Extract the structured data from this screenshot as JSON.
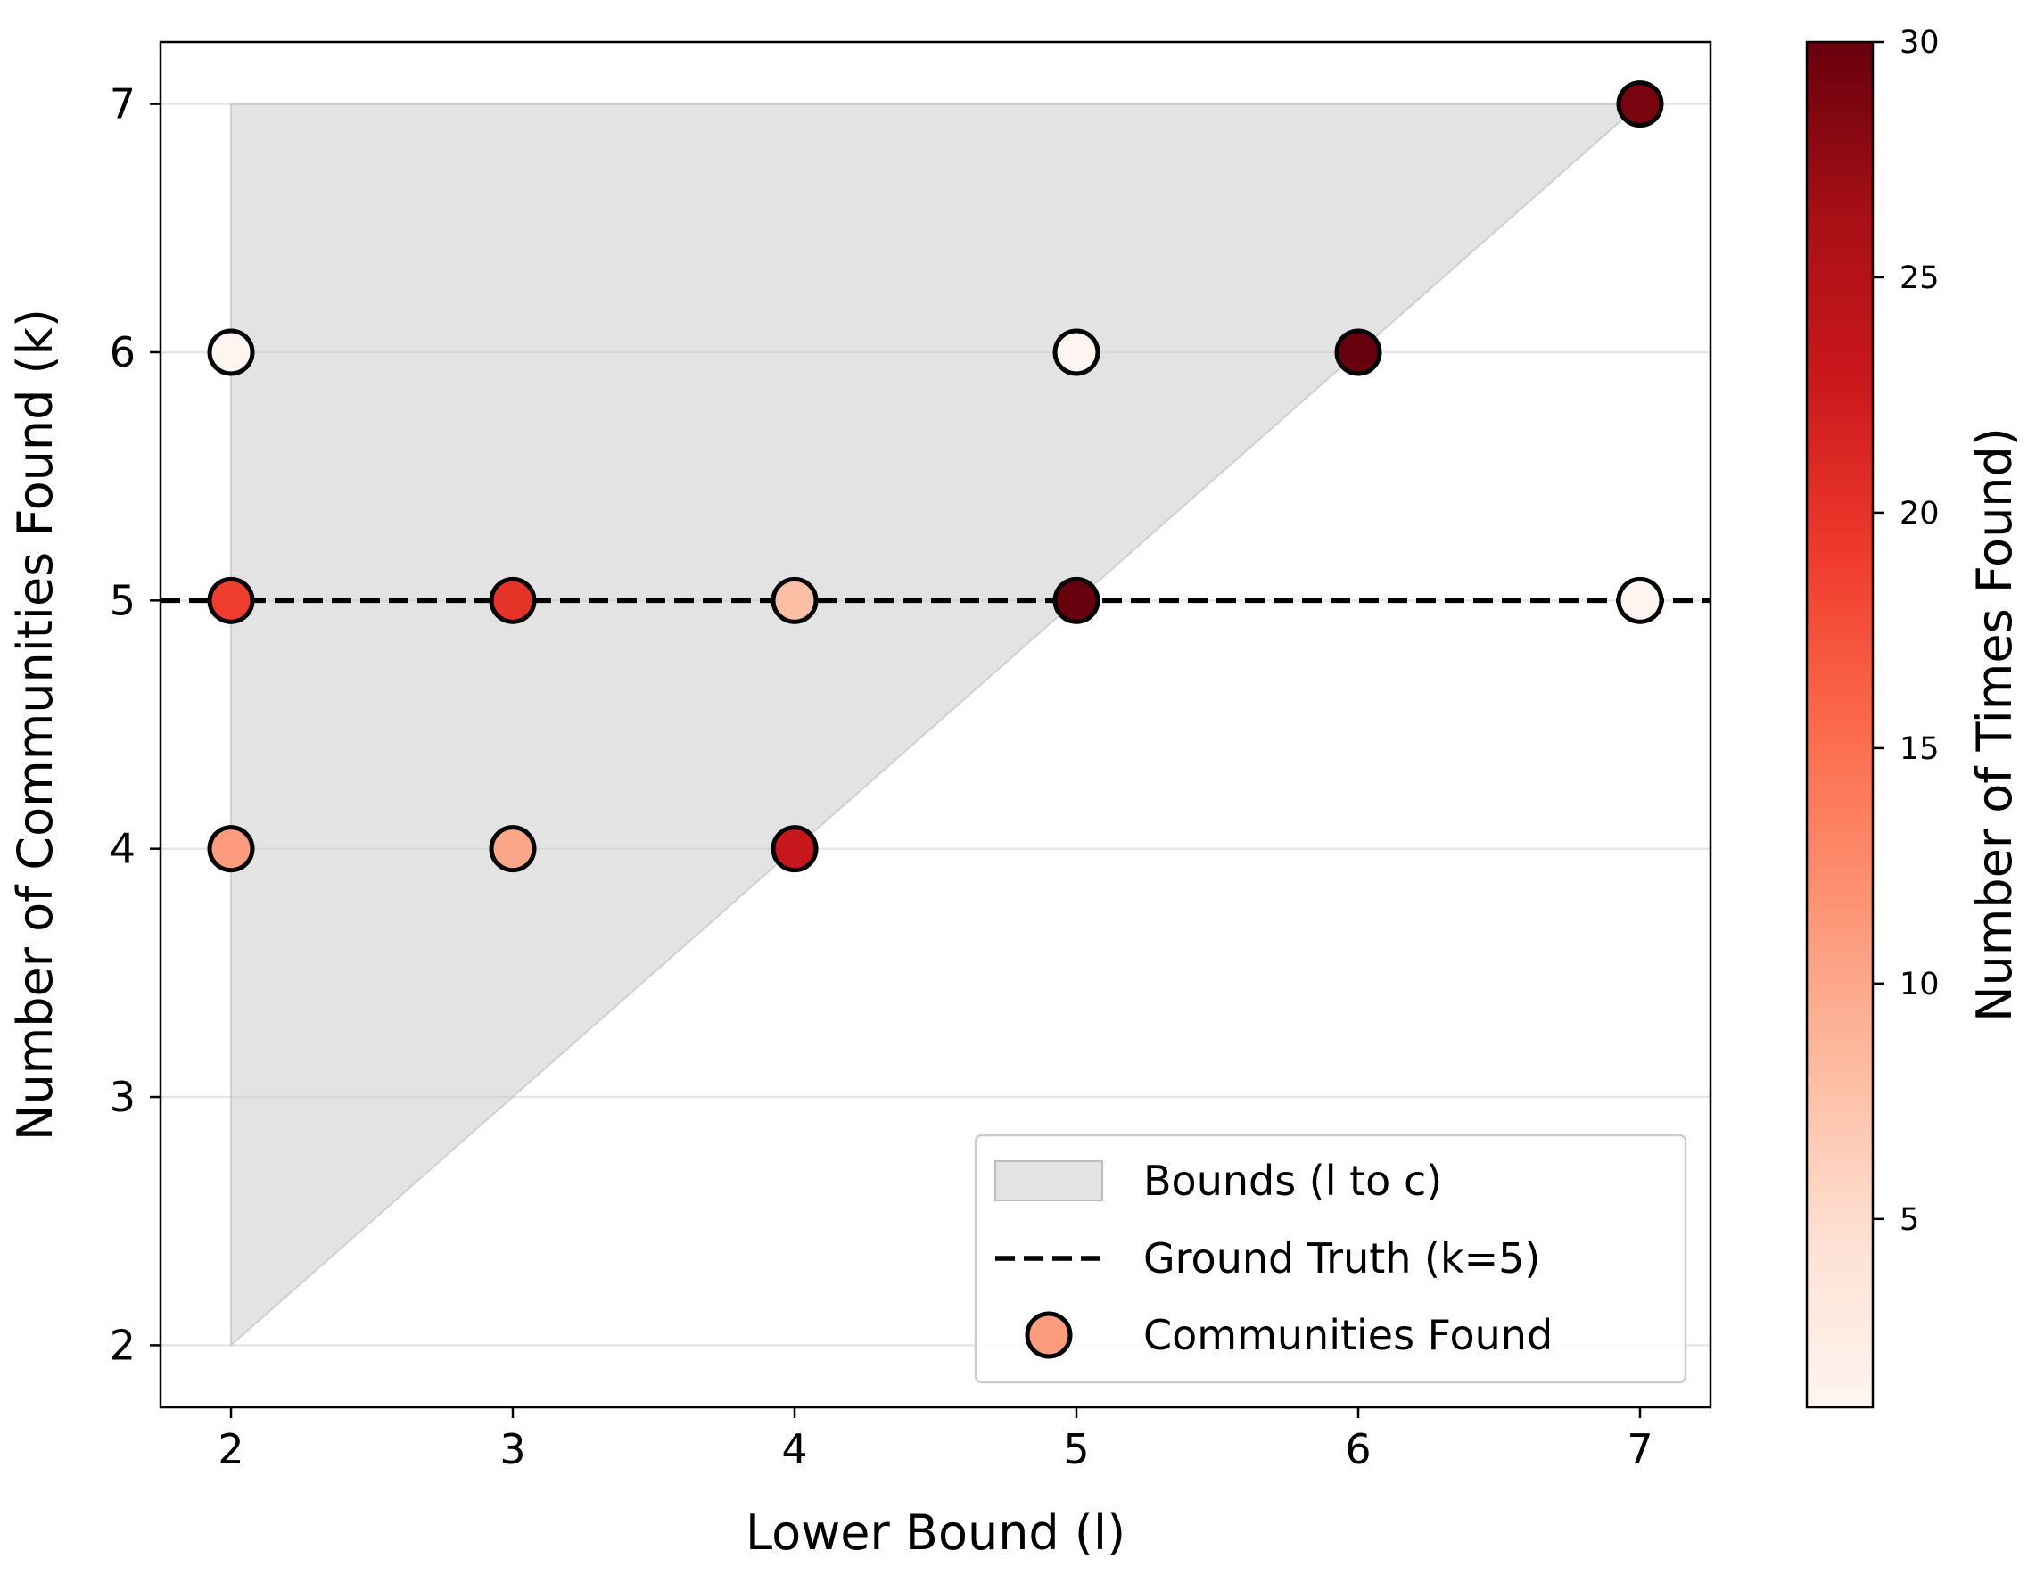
{
  "chart_data": {
    "type": "scatter",
    "title": "",
    "xlabel": "Lower Bound (l)",
    "ylabel": "Number of Communities Found (k)",
    "xlim": [
      1.75,
      7.25
    ],
    "ylim": [
      1.75,
      7.25
    ],
    "xticks": [
      2,
      3,
      4,
      5,
      6,
      7
    ],
    "yticks": [
      2,
      3,
      4,
      5,
      6,
      7
    ],
    "grid": "horizontal",
    "bounds_region": {
      "label": "Bounds (l to c)",
      "lower": [
        [
          2,
          2
        ],
        [
          7,
          7
        ]
      ],
      "upper": [
        [
          2,
          7
        ],
        [
          7,
          7
        ]
      ],
      "color": "#cccccc"
    },
    "reference_line": {
      "label": "Ground Truth (k=5)",
      "y": 5,
      "style": "dashed",
      "color": "#000000"
    },
    "series": [
      {
        "name": "Communities Found",
        "legend_color": "#fc9c7d",
        "points": [
          {
            "x": 2,
            "y": 6,
            "count": 1
          },
          {
            "x": 2,
            "y": 5,
            "count": 19
          },
          {
            "x": 2,
            "y": 4,
            "count": 11
          },
          {
            "x": 3,
            "y": 5,
            "count": 20
          },
          {
            "x": 3,
            "y": 4,
            "count": 10
          },
          {
            "x": 4,
            "y": 5,
            "count": 8
          },
          {
            "x": 4,
            "y": 4,
            "count": 23
          },
          {
            "x": 5,
            "y": 6,
            "count": 1
          },
          {
            "x": 5,
            "y": 5,
            "count": 30
          },
          {
            "x": 6,
            "y": 6,
            "count": 30
          },
          {
            "x": 7,
            "y": 7,
            "count": 29
          },
          {
            "x": 7,
            "y": 5,
            "count": 1
          }
        ]
      }
    ],
    "colorbar": {
      "label": "Number of Times Found)",
      "range": [
        1,
        30
      ],
      "ticks": [
        5,
        10,
        15,
        20,
        25,
        30
      ],
      "colormap": "Reds",
      "stops": [
        "#fff5f0",
        "#fee0d2",
        "#fcbba1",
        "#fc9272",
        "#fb6a4a",
        "#ef3b2c",
        "#cb181d",
        "#a50f15",
        "#67000d"
      ]
    },
    "legend": {
      "position": "lower-right",
      "entries": [
        "Bounds (l to c)",
        "Ground Truth (k=5)",
        "Communities Found"
      ]
    }
  }
}
